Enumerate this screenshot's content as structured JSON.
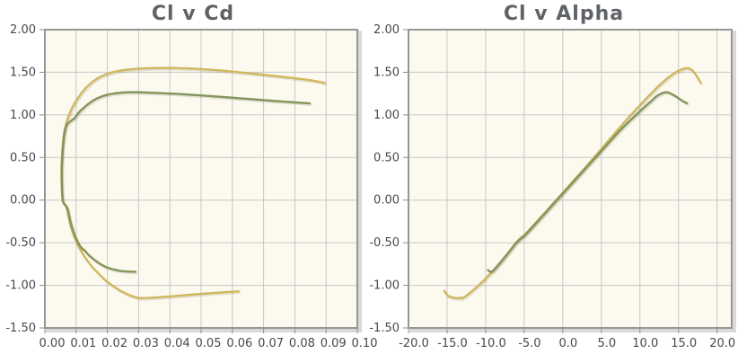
{
  "style": {
    "page_bg": "#ffffff",
    "plot_bg": "#fcfaee",
    "grid_color": "#c7c7c7",
    "grid_shadow": "#d9d9d9",
    "plot_border": "#969696",
    "tick_mark": "#8c8c8c",
    "title_color": "#5f6267",
    "tick_text_color": "#47494d",
    "series_tan": "#d0b75f",
    "series_olive": "#85945c"
  },
  "chart_data": [
    {
      "type": "line",
      "title": "Cl v Cd",
      "xlabel": "",
      "ylabel": "",
      "x_range": [
        0,
        0.1
      ],
      "y_range": [
        -1.5,
        2.0
      ],
      "grid": true,
      "legend": "none",
      "x_tick_labels": [
        "0.00",
        "0.01",
        "0.02",
        "0.03",
        "0.04",
        "0.05",
        "0.06",
        "0.07",
        "0.08",
        "0.09",
        "0.10"
      ],
      "y_tick_labels": [
        "2.00",
        "1.50",
        "1.00",
        "0.50",
        "0.00",
        "-0.50",
        "-1.00",
        "-1.50"
      ],
      "series": [
        {
          "name": "cl-cd-curve-tan",
          "color": "#d0b75f",
          "points": [
            [
              0.062,
              -1.07
            ],
            [
              0.056,
              -1.085
            ],
            [
              0.05,
              -1.1
            ],
            [
              0.045,
              -1.115
            ],
            [
              0.04,
              -1.13
            ],
            [
              0.036,
              -1.141
            ],
            [
              0.033,
              -1.148
            ],
            [
              0.03,
              -1.15
            ],
            [
              0.027,
              -1.115
            ],
            [
              0.024,
              -1.06
            ],
            [
              0.0215,
              -1.0
            ],
            [
              0.0195,
              -0.945
            ],
            [
              0.0175,
              -0.875
            ],
            [
              0.0155,
              -0.8
            ],
            [
              0.014,
              -0.73
            ],
            [
              0.0125,
              -0.655
            ],
            [
              0.0112,
              -0.575
            ],
            [
              0.0102,
              -0.5
            ],
            [
              0.0094,
              -0.43
            ],
            [
              0.0087,
              -0.36
            ],
            [
              0.0081,
              -0.29
            ],
            [
              0.0077,
              -0.22
            ],
            [
              0.0073,
              -0.155
            ],
            [
              0.007,
              -0.1
            ],
            [
              0.0066,
              -0.06
            ],
            [
              0.0061,
              -0.042
            ],
            [
              0.0058,
              -0.02
            ],
            [
              0.0056,
              0.05
            ],
            [
              0.0054,
              0.18
            ],
            [
              0.0053,
              0.32
            ],
            [
              0.0054,
              0.46
            ],
            [
              0.0056,
              0.6
            ],
            [
              0.0059,
              0.72
            ],
            [
              0.0063,
              0.82
            ],
            [
              0.0068,
              0.9
            ],
            [
              0.0075,
              0.98
            ],
            [
              0.0084,
              1.06
            ],
            [
              0.0094,
              1.13
            ],
            [
              0.0106,
              1.2
            ],
            [
              0.012,
              1.27
            ],
            [
              0.0136,
              1.335
            ],
            [
              0.0153,
              1.39
            ],
            [
              0.0171,
              1.435
            ],
            [
              0.0191,
              1.47
            ],
            [
              0.0213,
              1.497
            ],
            [
              0.0237,
              1.517
            ],
            [
              0.0263,
              1.53
            ],
            [
              0.0292,
              1.54
            ],
            [
              0.0323,
              1.546
            ],
            [
              0.036,
              1.55
            ],
            [
              0.04,
              1.551
            ],
            [
              0.044,
              1.548
            ],
            [
              0.048,
              1.542
            ],
            [
              0.052,
              1.533
            ],
            [
              0.056,
              1.522
            ],
            [
              0.06,
              1.508
            ],
            [
              0.064,
              1.493
            ],
            [
              0.068,
              1.478
            ],
            [
              0.072,
              1.462
            ],
            [
              0.076,
              1.447
            ],
            [
              0.08,
              1.43
            ],
            [
              0.084,
              1.412
            ],
            [
              0.087,
              1.395
            ],
            [
              0.0895,
              1.375
            ]
          ]
        },
        {
          "name": "cl-cd-curve-olive",
          "color": "#85945c",
          "points": [
            [
              0.029,
              -0.84
            ],
            [
              0.0265,
              -0.838
            ],
            [
              0.024,
              -0.83
            ],
            [
              0.0215,
              -0.81
            ],
            [
              0.0195,
              -0.785
            ],
            [
              0.0175,
              -0.745
            ],
            [
              0.0158,
              -0.7
            ],
            [
              0.0143,
              -0.655
            ],
            [
              0.0133,
              -0.617
            ],
            [
              0.0127,
              -0.588
            ],
            [
              0.0121,
              -0.574
            ],
            [
              0.0114,
              -0.548
            ],
            [
              0.0107,
              -0.505
            ],
            [
              0.0099,
              -0.445
            ],
            [
              0.0092,
              -0.377
            ],
            [
              0.0086,
              -0.307
            ],
            [
              0.0081,
              -0.237
            ],
            [
              0.0077,
              -0.168
            ],
            [
              0.0074,
              -0.115
            ],
            [
              0.007,
              -0.08
            ],
            [
              0.0065,
              -0.057
            ],
            [
              0.006,
              -0.038
            ],
            [
              0.0057,
              -0.01
            ],
            [
              0.0055,
              0.09
            ],
            [
              0.0054,
              0.23
            ],
            [
              0.0054,
              0.38
            ],
            [
              0.0056,
              0.52
            ],
            [
              0.0058,
              0.64
            ],
            [
              0.0061,
              0.745
            ],
            [
              0.0065,
              0.83
            ],
            [
              0.007,
              0.885
            ],
            [
              0.0077,
              0.912
            ],
            [
              0.0086,
              0.937
            ],
            [
              0.0095,
              0.963
            ],
            [
              0.0103,
              0.998
            ],
            [
              0.011,
              1.035
            ],
            [
              0.0116,
              1.058
            ],
            [
              0.0123,
              1.078
            ],
            [
              0.0131,
              1.105
            ],
            [
              0.0141,
              1.135
            ],
            [
              0.0153,
              1.165
            ],
            [
              0.0167,
              1.193
            ],
            [
              0.0183,
              1.218
            ],
            [
              0.0201,
              1.238
            ],
            [
              0.0222,
              1.252
            ],
            [
              0.0246,
              1.261
            ],
            [
              0.0272,
              1.266
            ],
            [
              0.0302,
              1.265
            ],
            [
              0.034,
              1.26
            ],
            [
              0.038,
              1.254
            ],
            [
              0.042,
              1.247
            ],
            [
              0.046,
              1.238
            ],
            [
              0.05,
              1.228
            ],
            [
              0.054,
              1.218
            ],
            [
              0.058,
              1.207
            ],
            [
              0.062,
              1.196
            ],
            [
              0.066,
              1.185
            ],
            [
              0.07,
              1.173
            ],
            [
              0.074,
              1.162
            ],
            [
              0.078,
              1.152
            ],
            [
              0.082,
              1.142
            ],
            [
              0.0848,
              1.135
            ]
          ]
        }
      ]
    },
    {
      "type": "line",
      "title": "Cl v Alpha",
      "xlabel": "",
      "ylabel": "",
      "x_range": [
        -20,
        21.9
      ],
      "y_range": [
        -1.5,
        2.0
      ],
      "grid": true,
      "legend": "none",
      "x_tick_labels": [
        "-20.0",
        "-15.0",
        "-10.0",
        "-5.0",
        "0.0",
        "5.0",
        "10.0",
        "15.0",
        "20.0"
      ],
      "y_tick_labels": [
        "2.00",
        "1.50",
        "1.00",
        "0.50",
        "0.00",
        "-0.50",
        "-1.00",
        "-1.50"
      ],
      "series": [
        {
          "name": "cl-alpha-curve-tan",
          "color": "#d0b75f",
          "points": [
            [
              -15.35,
              -1.065
            ],
            [
              -15.15,
              -1.095
            ],
            [
              -14.9,
              -1.12
            ],
            [
              -14.5,
              -1.138
            ],
            [
              -14.1,
              -1.147
            ],
            [
              -13.7,
              -1.15
            ],
            [
              -13.35,
              -1.146
            ],
            [
              -13.1,
              -1.152
            ],
            [
              -12.8,
              -1.138
            ],
            [
              -12.4,
              -1.115
            ],
            [
              -12.0,
              -1.085
            ],
            [
              -11.5,
              -1.048
            ],
            [
              -11.0,
              -1.008
            ],
            [
              -10.5,
              -0.965
            ],
            [
              -10.0,
              -0.92
            ],
            [
              -9.5,
              -0.873
            ],
            [
              -9.0,
              -0.824
            ],
            [
              -8.5,
              -0.775
            ],
            [
              -8.0,
              -0.724
            ],
            [
              -7.5,
              -0.668
            ],
            [
              -7.0,
              -0.61
            ],
            [
              -6.5,
              -0.55
            ],
            [
              -6.0,
              -0.492
            ],
            [
              -5.5,
              -0.447
            ],
            [
              -5.0,
              -0.41
            ],
            [
              -4.5,
              -0.364
            ],
            [
              -4.0,
              -0.314
            ],
            [
              -3.5,
              -0.264
            ],
            [
              -3.0,
              -0.214
            ],
            [
              -2.5,
              -0.164
            ],
            [
              -2.0,
              -0.114
            ],
            [
              -1.5,
              -0.064
            ],
            [
              -1.0,
              -0.014
            ],
            [
              -0.5,
              0.036
            ],
            [
              0.0,
              0.086
            ],
            [
              0.5,
              0.137
            ],
            [
              1.0,
              0.188
            ],
            [
              1.5,
              0.239
            ],
            [
              2.0,
              0.29
            ],
            [
              2.5,
              0.341
            ],
            [
              3.0,
              0.392
            ],
            [
              3.5,
              0.443
            ],
            [
              4.0,
              0.495
            ],
            [
              4.5,
              0.547
            ],
            [
              5.0,
              0.6
            ],
            [
              5.5,
              0.653
            ],
            [
              6.0,
              0.707
            ],
            [
              6.5,
              0.76
            ],
            [
              7.0,
              0.813
            ],
            [
              7.5,
              0.864
            ],
            [
              8.0,
              0.915
            ],
            [
              8.5,
              0.966
            ],
            [
              9.0,
              1.016
            ],
            [
              9.5,
              1.065
            ],
            [
              10.0,
              1.113
            ],
            [
              10.5,
              1.161
            ],
            [
              11.0,
              1.208
            ],
            [
              11.5,
              1.254
            ],
            [
              12.0,
              1.3
            ],
            [
              12.5,
              1.344
            ],
            [
              13.0,
              1.386
            ],
            [
              13.5,
              1.425
            ],
            [
              14.0,
              1.46
            ],
            [
              14.5,
              1.492
            ],
            [
              15.0,
              1.518
            ],
            [
              15.5,
              1.538
            ],
            [
              16.0,
              1.549
            ],
            [
              16.4,
              1.546
            ],
            [
              16.8,
              1.522
            ],
            [
              17.2,
              1.477
            ],
            [
              17.6,
              1.418
            ],
            [
              17.9,
              1.375
            ]
          ]
        },
        {
          "name": "cl-alpha-curve-olive",
          "color": "#85945c",
          "points": [
            [
              -9.7,
              -0.822
            ],
            [
              -9.45,
              -0.838
            ],
            [
              -9.2,
              -0.84
            ],
            [
              -8.95,
              -0.822
            ],
            [
              -8.5,
              -0.776
            ],
            [
              -8.0,
              -0.722
            ],
            [
              -7.5,
              -0.666
            ],
            [
              -7.0,
              -0.61
            ],
            [
              -6.5,
              -0.552
            ],
            [
              -6.0,
              -0.497
            ],
            [
              -5.5,
              -0.456
            ],
            [
              -5.0,
              -0.42
            ],
            [
              -4.5,
              -0.374
            ],
            [
              -4.0,
              -0.324
            ],
            [
              -3.5,
              -0.274
            ],
            [
              -3.0,
              -0.224
            ],
            [
              -2.5,
              -0.174
            ],
            [
              -2.0,
              -0.124
            ],
            [
              -1.5,
              -0.074
            ],
            [
              -1.0,
              -0.024
            ],
            [
              -0.5,
              0.026
            ],
            [
              0.0,
              0.076
            ],
            [
              0.5,
              0.126
            ],
            [
              1.0,
              0.176
            ],
            [
              1.5,
              0.226
            ],
            [
              2.0,
              0.276
            ],
            [
              2.5,
              0.326
            ],
            [
              3.0,
              0.376
            ],
            [
              3.5,
              0.426
            ],
            [
              4.0,
              0.476
            ],
            [
              4.5,
              0.526
            ],
            [
              5.0,
              0.576
            ],
            [
              5.5,
              0.626
            ],
            [
              6.0,
              0.676
            ],
            [
              6.5,
              0.726
            ],
            [
              7.0,
              0.776
            ],
            [
              7.5,
              0.824
            ],
            [
              8.0,
              0.87
            ],
            [
              8.5,
              0.914
            ],
            [
              9.0,
              0.956
            ],
            [
              9.5,
              0.999
            ],
            [
              10.0,
              1.043
            ],
            [
              10.5,
              1.084
            ],
            [
              11.0,
              1.124
            ],
            [
              11.5,
              1.164
            ],
            [
              12.0,
              1.207
            ],
            [
              12.5,
              1.239
            ],
            [
              13.0,
              1.258
            ],
            [
              13.4,
              1.266
            ],
            [
              13.8,
              1.259
            ],
            [
              14.2,
              1.24
            ],
            [
              14.6,
              1.221
            ],
            [
              15.0,
              1.196
            ],
            [
              15.4,
              1.171
            ],
            [
              15.8,
              1.15
            ],
            [
              16.1,
              1.136
            ]
          ]
        }
      ]
    }
  ]
}
